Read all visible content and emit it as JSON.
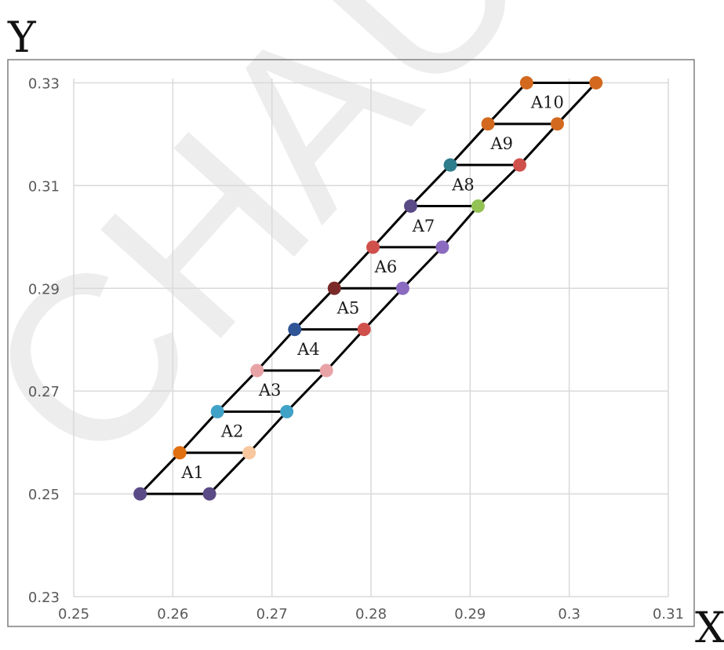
{
  "chart_data": {
    "type": "scatter",
    "title": "",
    "xlabel": "X",
    "ylabel": "Y",
    "xlim": [
      0.25,
      0.31
    ],
    "ylim": [
      0.23,
      0.34
    ],
    "x_ticks": [
      0.25,
      0.26,
      0.27,
      0.28,
      0.29,
      0.3,
      0.31
    ],
    "x_tick_labels": [
      "0.25",
      "0.26",
      "0.27",
      "0.28",
      "0.29",
      "0.3",
      "0.31"
    ],
    "y_ticks": [
      0.23,
      0.25,
      0.27,
      0.29,
      0.31,
      0.33
    ],
    "y_tick_labels": [
      "0.23",
      "0.25",
      "0.27",
      "0.29",
      "0.31",
      "0.33"
    ],
    "grid": true,
    "legend": "none",
    "points": [
      {
        "x": 0.2567,
        "y": 0.25,
        "color": "#5a4a85"
      },
      {
        "x": 0.2637,
        "y": 0.25,
        "color": "#5a4a85"
      },
      {
        "x": 0.2607,
        "y": 0.258,
        "color": "#e07010"
      },
      {
        "x": 0.2677,
        "y": 0.258,
        "color": "#f8c79e"
      },
      {
        "x": 0.2645,
        "y": 0.266,
        "color": "#41a2c7"
      },
      {
        "x": 0.2715,
        "y": 0.266,
        "color": "#41a2c7"
      },
      {
        "x": 0.2685,
        "y": 0.274,
        "color": "#e8a3a6"
      },
      {
        "x": 0.2755,
        "y": 0.274,
        "color": "#e8a3a6"
      },
      {
        "x": 0.2723,
        "y": 0.282,
        "color": "#2f5597"
      },
      {
        "x": 0.2793,
        "y": 0.282,
        "color": "#d0504c"
      },
      {
        "x": 0.2763,
        "y": 0.29,
        "color": "#7b2a2a"
      },
      {
        "x": 0.2832,
        "y": 0.29,
        "color": "#8a6bbf"
      },
      {
        "x": 0.2802,
        "y": 0.298,
        "color": "#d0504c"
      },
      {
        "x": 0.2872,
        "y": 0.298,
        "color": "#8a6bbf"
      },
      {
        "x": 0.284,
        "y": 0.306,
        "color": "#5a4a85"
      },
      {
        "x": 0.2908,
        "y": 0.306,
        "color": "#92c154"
      },
      {
        "x": 0.288,
        "y": 0.314,
        "color": "#2e7d8c"
      },
      {
        "x": 0.295,
        "y": 0.314,
        "color": "#d0504c"
      },
      {
        "x": 0.2918,
        "y": 0.322,
        "color": "#d2691e"
      },
      {
        "x": 0.2988,
        "y": 0.322,
        "color": "#d2691e"
      },
      {
        "x": 0.2957,
        "y": 0.33,
        "color": "#d2691e"
      },
      {
        "x": 0.3027,
        "y": 0.33,
        "color": "#d2691e"
      }
    ],
    "regions": [
      {
        "label": "A1",
        "x": 0.262,
        "y": 0.2543
      },
      {
        "label": "A2",
        "x": 0.266,
        "y": 0.2623
      },
      {
        "label": "A3",
        "x": 0.2698,
        "y": 0.2703
      },
      {
        "label": "A4",
        "x": 0.2737,
        "y": 0.2783
      },
      {
        "label": "A5",
        "x": 0.2777,
        "y": 0.2863
      },
      {
        "label": "A6",
        "x": 0.2815,
        "y": 0.2943
      },
      {
        "label": "A7",
        "x": 0.2853,
        "y": 0.3023
      },
      {
        "label": "A8",
        "x": 0.2893,
        "y": 0.3103
      },
      {
        "label": "A9",
        "x": 0.2932,
        "y": 0.3183
      },
      {
        "label": "A10",
        "x": 0.2978,
        "y": 0.3263
      }
    ]
  },
  "watermark": "CHAULI"
}
